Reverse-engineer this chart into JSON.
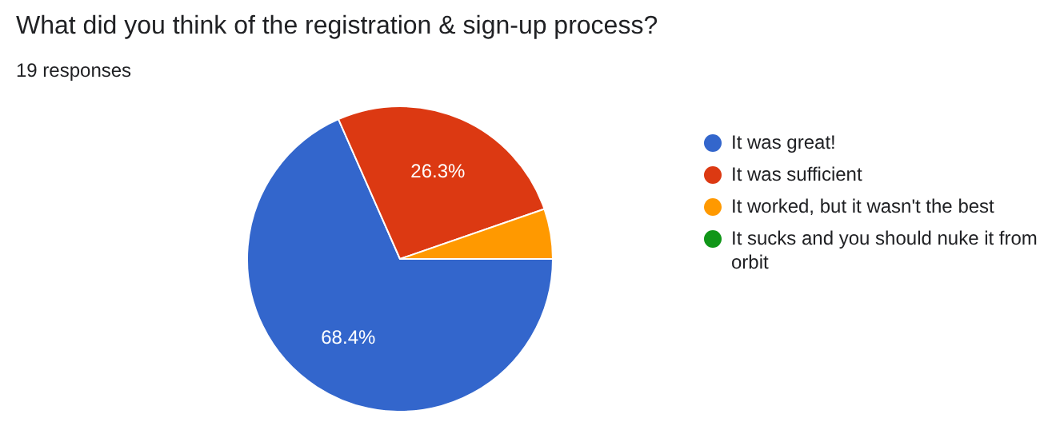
{
  "chart_data": {
    "type": "pie",
    "title": "What did you think of the registration & sign-up process?",
    "subtitle": "19 responses",
    "categories": [
      "It was great!",
      "It was sufficient",
      "It worked, but it wasn't the best",
      "It sucks and you should nuke it from orbit"
    ],
    "values": [
      68.4,
      26.3,
      5.3,
      0
    ],
    "colors": [
      "#3366cc",
      "#dc3912",
      "#ff9900",
      "#109618"
    ],
    "value_labels": [
      "68.4%",
      "26.3%",
      null,
      null
    ],
    "legend": "right"
  }
}
